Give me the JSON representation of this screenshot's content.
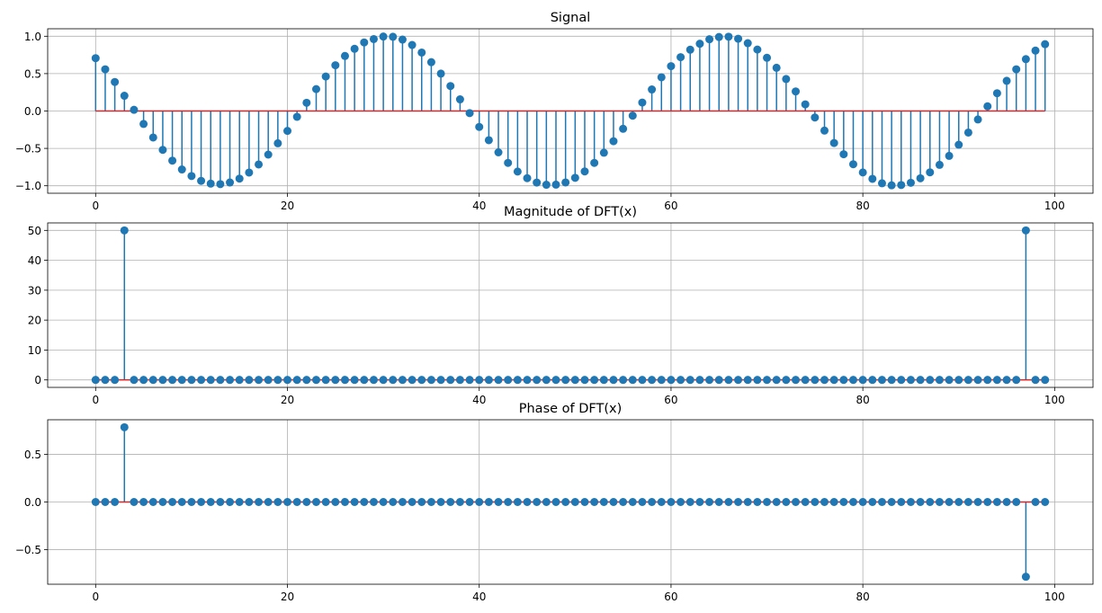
{
  "colors": {
    "stem": "#1f77b4",
    "baseline": "#d62728",
    "grid": "#b0b0b0"
  },
  "chart_data": [
    {
      "type": "stem",
      "title": "Signal",
      "xlabel": "",
      "ylabel": "",
      "grid": true,
      "xlim": [
        -5,
        104
      ],
      "ylim": [
        -1.1,
        1.1
      ],
      "xticks": [
        0,
        20,
        40,
        60,
        80,
        100
      ],
      "xtick_labels": [
        "0",
        "20",
        "40",
        "60",
        "80",
        "100"
      ],
      "yticks": [
        1.0,
        0.5,
        0.0,
        -0.5,
        -1.0
      ],
      "ytick_labels": [
        "1.0",
        "0.5",
        "0.0",
        "−0.5",
        "−1.0"
      ],
      "baseline": 0,
      "x": [
        0,
        1,
        2,
        3,
        4,
        5,
        6,
        7,
        8,
        9,
        10,
        11,
        12,
        13,
        14,
        15,
        16,
        17,
        18,
        19,
        20,
        21,
        22,
        23,
        24,
        25,
        26,
        27,
        28,
        29,
        30,
        31,
        32,
        33,
        34,
        35,
        36,
        37,
        38,
        39,
        40,
        41,
        42,
        43,
        44,
        45,
        46,
        47,
        48,
        49,
        50,
        51,
        52,
        53,
        54,
        55,
        56,
        57,
        58,
        59,
        60,
        61,
        62,
        63,
        64,
        65,
        66,
        67,
        68,
        69,
        70,
        71,
        72,
        73,
        74,
        75,
        76,
        77,
        78,
        79,
        80,
        81,
        82,
        83,
        84,
        85,
        86,
        87,
        88,
        89,
        90,
        91,
        92,
        93,
        94,
        95,
        96,
        97,
        98,
        99
      ],
      "y": [
        0.707,
        0.558,
        0.388,
        0.204,
        0.016,
        -0.173,
        -0.354,
        -0.52,
        -0.664,
        -0.782,
        -0.87,
        -0.934,
        -0.971,
        -0.978,
        -0.956,
        -0.904,
        -0.823,
        -0.715,
        -0.583,
        -0.432,
        -0.266,
        -0.078,
        0.11,
        0.293,
        0.462,
        0.612,
        0.736,
        0.832,
        0.917,
        0.962,
        0.996,
        0.993,
        0.955,
        0.883,
        0.782,
        0.653,
        0.5,
        0.334,
        0.156,
        -0.028,
        -0.213,
        -0.39,
        -0.553,
        -0.694,
        -0.81,
        -0.898,
        -0.957,
        -0.986,
        -0.985,
        -0.955,
        -0.894,
        -0.808,
        -0.694,
        -0.558,
        -0.404,
        -0.238,
        -0.063,
        0.113,
        0.288,
        0.451,
        0.6,
        0.72,
        0.82,
        0.9,
        0.96,
        0.99,
        0.994,
        0.967,
        0.907,
        0.822,
        0.712,
        0.578,
        0.428,
        0.262,
        0.089,
        -0.087,
        -0.262,
        -0.428,
        -0.578,
        -0.712,
        -0.822,
        -0.907,
        -0.967,
        -0.994,
        -0.99,
        -0.96,
        -0.9,
        -0.82,
        -0.72,
        -0.6,
        -0.451,
        -0.288,
        -0.113,
        0.063,
        0.238,
        0.404,
        0.558,
        0.694,
        0.808,
        0.894
      ]
    },
    {
      "type": "stem",
      "title": "Magnitude of DFT(x)",
      "xlabel": "",
      "ylabel": "",
      "grid": true,
      "xlim": [
        -5,
        104
      ],
      "ylim": [
        -2.5,
        52.5
      ],
      "xticks": [
        0,
        20,
        40,
        60,
        80,
        100
      ],
      "xtick_labels": [
        "0",
        "20",
        "40",
        "60",
        "80",
        "100"
      ],
      "yticks": [
        50,
        40,
        30,
        20,
        10,
        0
      ],
      "ytick_labels": [
        "50",
        "40",
        "30",
        "20",
        "10",
        "0"
      ],
      "baseline": 0,
      "x": [
        0,
        1,
        2,
        3,
        4,
        5,
        6,
        7,
        8,
        9,
        10,
        11,
        12,
        13,
        14,
        15,
        16,
        17,
        18,
        19,
        20,
        21,
        22,
        23,
        24,
        25,
        26,
        27,
        28,
        29,
        30,
        31,
        32,
        33,
        34,
        35,
        36,
        37,
        38,
        39,
        40,
        41,
        42,
        43,
        44,
        45,
        46,
        47,
        48,
        49,
        50,
        51,
        52,
        53,
        54,
        55,
        56,
        57,
        58,
        59,
        60,
        61,
        62,
        63,
        64,
        65,
        66,
        67,
        68,
        69,
        70,
        71,
        72,
        73,
        74,
        75,
        76,
        77,
        78,
        79,
        80,
        81,
        82,
        83,
        84,
        85,
        86,
        87,
        88,
        89,
        90,
        91,
        92,
        93,
        94,
        95,
        96,
        97,
        98,
        99
      ],
      "y": [
        0,
        0,
        0,
        50,
        0,
        0,
        0,
        0,
        0,
        0,
        0,
        0,
        0,
        0,
        0,
        0,
        0,
        0,
        0,
        0,
        0,
        0,
        0,
        0,
        0,
        0,
        0,
        0,
        0,
        0,
        0,
        0,
        0,
        0,
        0,
        0,
        0,
        0,
        0,
        0,
        0,
        0,
        0,
        0,
        0,
        0,
        0,
        0,
        0,
        0,
        0,
        0,
        0,
        0,
        0,
        0,
        0,
        0,
        0,
        0,
        0,
        0,
        0,
        0,
        0,
        0,
        0,
        0,
        0,
        0,
        0,
        0,
        0,
        0,
        0,
        0,
        0,
        0,
        0,
        0,
        0,
        0,
        0,
        0,
        0,
        0,
        0,
        0,
        0,
        0,
        0,
        0,
        0,
        0,
        0,
        0,
        0,
        50,
        0,
        0
      ]
    },
    {
      "type": "stem",
      "title": "Phase of DFT(x)",
      "xlabel": "",
      "ylabel": "",
      "grid": true,
      "xlim": [
        -5,
        104
      ],
      "ylim": [
        -0.864,
        0.864
      ],
      "xticks": [
        0,
        20,
        40,
        60,
        80,
        100
      ],
      "xtick_labels": [
        "0",
        "20",
        "40",
        "60",
        "80",
        "100"
      ],
      "yticks": [
        0.5,
        0.0,
        -0.5
      ],
      "ytick_labels": [
        "0.5",
        "0.0",
        "−0.5"
      ],
      "baseline": 0,
      "x": [
        0,
        1,
        2,
        3,
        4,
        5,
        6,
        7,
        8,
        9,
        10,
        11,
        12,
        13,
        14,
        15,
        16,
        17,
        18,
        19,
        20,
        21,
        22,
        23,
        24,
        25,
        26,
        27,
        28,
        29,
        30,
        31,
        32,
        33,
        34,
        35,
        36,
        37,
        38,
        39,
        40,
        41,
        42,
        43,
        44,
        45,
        46,
        47,
        48,
        49,
        50,
        51,
        52,
        53,
        54,
        55,
        56,
        57,
        58,
        59,
        60,
        61,
        62,
        63,
        64,
        65,
        66,
        67,
        68,
        69,
        70,
        71,
        72,
        73,
        74,
        75,
        76,
        77,
        78,
        79,
        80,
        81,
        82,
        83,
        84,
        85,
        86,
        87,
        88,
        89,
        90,
        91,
        92,
        93,
        94,
        95,
        96,
        97,
        98,
        99
      ],
      "y": [
        0,
        0,
        0,
        0.785,
        0,
        0,
        0,
        0,
        0,
        0,
        0,
        0,
        0,
        0,
        0,
        0,
        0,
        0,
        0,
        0,
        0,
        0,
        0,
        0,
        0,
        0,
        0,
        0,
        0,
        0,
        0,
        0,
        0,
        0,
        0,
        0,
        0,
        0,
        0,
        0,
        0,
        0,
        0,
        0,
        0,
        0,
        0,
        0,
        0,
        0,
        0,
        0,
        0,
        0,
        0,
        0,
        0,
        0,
        0,
        0,
        0,
        0,
        0,
        0,
        0,
        0,
        0,
        0,
        0,
        0,
        0,
        0,
        0,
        0,
        0,
        0,
        0,
        0,
        0,
        0,
        0,
        0,
        0,
        0,
        0,
        0,
        0,
        0,
        0,
        0,
        0,
        0,
        0,
        0,
        0,
        0,
        0,
        -0.785,
        0,
        0
      ]
    }
  ]
}
